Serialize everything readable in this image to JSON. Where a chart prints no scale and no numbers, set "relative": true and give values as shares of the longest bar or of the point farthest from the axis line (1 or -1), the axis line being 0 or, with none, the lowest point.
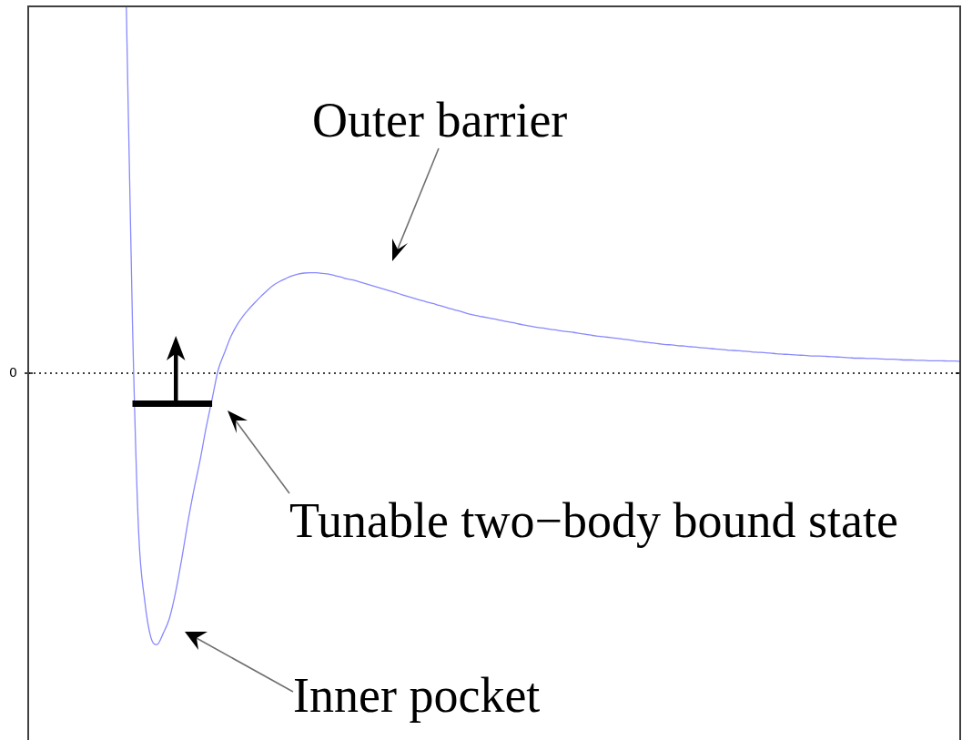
{
  "chart_data": {
    "type": "line",
    "relative": true,
    "categories": [
      null,
      null,
      null,
      null,
      null,
      null,
      null,
      null,
      null,
      null,
      null,
      null,
      null,
      null,
      null,
      null,
      null,
      null,
      null,
      null,
      null,
      null,
      null,
      null,
      null,
      null,
      null,
      null,
      null,
      null,
      null,
      null,
      null,
      null,
      null,
      null,
      null,
      null,
      null,
      null,
      null,
      null,
      null,
      null,
      null,
      null,
      null,
      null,
      null,
      null,
      null,
      null,
      null,
      null,
      null,
      null,
      null,
      null,
      null,
      null,
      null,
      null,
      null,
      null,
      null,
      null,
      null,
      null,
      null,
      null,
      null,
      null,
      null,
      null,
      null,
      null,
      null,
      null,
      null,
      null,
      null,
      null,
      null,
      null,
      null,
      null,
      null,
      null,
      null,
      null,
      null,
      null,
      null,
      null,
      null,
      null,
      null,
      null,
      null,
      null,
      null,
      null,
      null,
      null,
      null,
      null,
      null,
      null,
      null,
      null,
      null,
      null,
      null,
      null,
      null,
      null,
      null,
      null,
      null,
      null,
      null,
      null,
      null,
      null,
      null,
      null,
      null,
      null,
      null,
      null,
      null,
      null,
      null,
      null,
      null,
      null,
      null,
      null,
      null,
      null,
      null,
      null,
      null,
      null,
      null,
      null,
      null,
      null,
      null,
      null,
      null,
      null,
      null
    ],
    "series": [
      {
        "color": "#8888ff",
        "values": [
          null,
          null,
          null,
          null,
          null,
          null,
          null,
          null,
          null,
          null,
          null,
          null,
          null,
          null,
          null,
          null,
          1,
          0.14,
          -0.43,
          -0.62,
          -0.72,
          -0.74,
          -0.71,
          -0.67,
          -0.6,
          -0.51,
          -0.41,
          -0.32,
          -0.24,
          -0.15,
          -0.07,
          0.01,
          0.055,
          0.098,
          0.13,
          0.155,
          0.175,
          0.193,
          0.21,
          0.226,
          0.24,
          0.25,
          0.258,
          0.265,
          0.27,
          0.273,
          0.274,
          0.274,
          0.272,
          0.27,
          0.266,
          0.262,
          0.257,
          0.254,
          0.249,
          0.244,
          0.239,
          0.234,
          0.229,
          0.224,
          0.219,
          0.214,
          0.209,
          0.204,
          0.199,
          0.194,
          0.19,
          0.185,
          0.18,
          0.175,
          0.171,
          0.166,
          0.161,
          0.157,
          0.154,
          0.151,
          0.148,
          0.144,
          0.141,
          0.138,
          0.134,
          0.131,
          0.128,
          0.125,
          0.123,
          0.12,
          0.118,
          0.115,
          0.113,
          0.111,
          0.108,
          0.106,
          0.103,
          0.101,
          0.099,
          0.097,
          0.095,
          0.093,
          0.091,
          0.088,
          0.086,
          0.084,
          0.082,
          0.08,
          0.078,
          0.077,
          0.075,
          0.074,
          0.072,
          0.071,
          0.069,
          0.068,
          0.066,
          0.065,
          0.063,
          0.062,
          0.061,
          0.06,
          0.058,
          0.057,
          0.056,
          0.055,
          0.053,
          0.052,
          0.051,
          0.05,
          0.049,
          0.048,
          0.047,
          0.047,
          0.046,
          0.045,
          0.044,
          0.043,
          0.042,
          0.041,
          0.041,
          0.04,
          0.04,
          0.039,
          0.038,
          0.038,
          0.037,
          0.036,
          0.036,
          0.035,
          0.035,
          0.034,
          0.034,
          0.034,
          0.033,
          0.033,
          0.032
        ]
      },
      {
        "color": "#000000",
        "values": [
          null,
          null,
          null,
          null,
          null,
          null,
          null,
          null,
          null,
          null,
          null,
          null,
          null,
          null,
          null,
          null,
          null,
          -0.083,
          -0.083,
          -0.083,
          -0.083,
          -0.083,
          -0.083,
          -0.083,
          -0.083,
          -0.083,
          -0.083,
          -0.083,
          -0.083,
          -0.083,
          -0.083,
          null,
          null,
          null,
          null,
          null,
          null,
          null,
          null,
          null,
          null,
          null,
          null,
          null,
          null,
          null,
          null,
          null,
          null,
          null,
          null,
          null,
          null,
          null,
          null,
          null,
          null,
          null,
          null,
          null,
          null,
          null,
          null,
          null,
          null,
          null,
          null,
          null,
          null,
          null,
          null,
          null,
          null,
          null,
          null,
          null,
          null,
          null,
          null,
          null,
          null,
          null,
          null,
          null,
          null,
          null,
          null,
          null,
          null,
          null,
          null,
          null,
          null,
          null,
          null,
          null,
          null,
          null,
          null,
          null,
          null,
          null,
          null,
          null,
          null,
          null,
          null,
          null,
          null,
          null,
          null,
          null,
          null,
          null,
          null,
          null,
          null,
          null,
          null,
          null,
          null,
          null,
          null,
          null,
          null,
          null,
          null,
          null,
          null,
          null,
          null,
          null,
          null,
          null,
          null,
          null,
          null,
          null,
          null,
          null,
          null,
          null,
          null,
          null,
          null,
          null,
          null,
          null,
          null,
          null,
          null,
          null,
          null
        ]
      }
    ],
    "ref_lines": [
      {
        "axis": "y",
        "value": 0,
        "label": "0",
        "line_style": "dotted",
        "color": "#000000"
      }
    ],
    "annotations": [
      "Outer barrier",
      "Tunable two−body bound state",
      "Inner pocket"
    ]
  }
}
